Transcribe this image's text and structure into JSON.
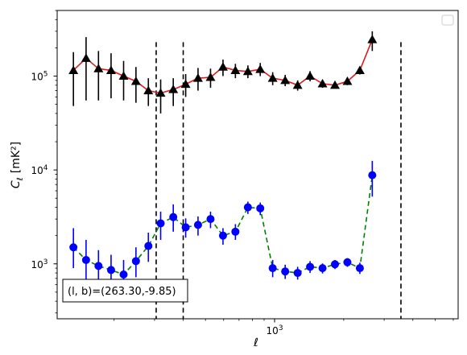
{
  "chart_data": {
    "type": "scatter",
    "title": "",
    "xlabel": "ℓ",
    "ylabel_main": "C",
    "ylabel_sub": "ℓ",
    "ylabel_unit": "[mK²]",
    "xscale": "log",
    "yscale": "log",
    "xlim": [
      113,
      6300
    ],
    "ylim": [
      260,
      500000
    ],
    "x_ticks": [
      {
        "value": 1000,
        "base": "10",
        "exp": "3"
      }
    ],
    "y_ticks": [
      {
        "value": 1000,
        "base": "10",
        "exp": "3"
      },
      {
        "value": 10000,
        "base": "10",
        "exp": "4"
      },
      {
        "value": 100000,
        "base": "10",
        "exp": "5"
      }
    ],
    "vlines": [
      305,
      400,
      3550
    ],
    "legend_placement": "top-right",
    "annotation": "(l, b)=(263.30,-9.85)",
    "series": [
      {
        "marker": "triangle",
        "color": "#000000",
        "line_color": "#e31a1c",
        "line_style": "solid",
        "points": [
          {
            "x": 133,
            "y": 115000,
            "lo": 48000,
            "hi": 180000
          },
          {
            "x": 151,
            "y": 155000,
            "lo": 55000,
            "hi": 260000
          },
          {
            "x": 171,
            "y": 120000,
            "lo": 55000,
            "hi": 185000
          },
          {
            "x": 194,
            "y": 115000,
            "lo": 58000,
            "hi": 175000
          },
          {
            "x": 220,
            "y": 100000,
            "lo": 55000,
            "hi": 145000
          },
          {
            "x": 249,
            "y": 88000,
            "lo": 52000,
            "hi": 125000
          },
          {
            "x": 282,
            "y": 70000,
            "lo": 48000,
            "hi": 95000
          },
          {
            "x": 319,
            "y": 66000,
            "lo": 40000,
            "hi": 92000
          },
          {
            "x": 362,
            "y": 72000,
            "lo": 48000,
            "hi": 95000
          },
          {
            "x": 410,
            "y": 82000,
            "lo": 60000,
            "hi": 105000
          },
          {
            "x": 464,
            "y": 95000,
            "lo": 70000,
            "hi": 122000
          },
          {
            "x": 526,
            "y": 97000,
            "lo": 75000,
            "hi": 120000
          },
          {
            "x": 596,
            "y": 125000,
            "lo": 100000,
            "hi": 150000
          },
          {
            "x": 675,
            "y": 115000,
            "lo": 95000,
            "hi": 135000
          },
          {
            "x": 765,
            "y": 112000,
            "lo": 95000,
            "hi": 130000
          },
          {
            "x": 866,
            "y": 118000,
            "lo": 100000,
            "hi": 138000
          },
          {
            "x": 981,
            "y": 95000,
            "lo": 80000,
            "hi": 110000
          },
          {
            "x": 1112,
            "y": 90000,
            "lo": 78000,
            "hi": 103000
          },
          {
            "x": 1260,
            "y": 80000,
            "lo": 70000,
            "hi": 90000
          },
          {
            "x": 1427,
            "y": 100000,
            "lo": 88000,
            "hi": 113000
          },
          {
            "x": 1617,
            "y": 83000,
            "lo": 75000,
            "hi": 91000
          },
          {
            "x": 1832,
            "y": 80000,
            "lo": 74000,
            "hi": 86000
          },
          {
            "x": 2075,
            "y": 88000,
            "lo": 80000,
            "hi": 96000
          },
          {
            "x": 2351,
            "y": 115000,
            "lo": 104000,
            "hi": 126000
          },
          {
            "x": 2663,
            "y": 245000,
            "lo": 185000,
            "hi": 300000
          }
        ]
      },
      {
        "marker": "circle",
        "color": "#0000ff",
        "line_color": "#008000",
        "line_style": "dashed",
        "points": [
          {
            "x": 133,
            "y": 1500,
            "lo": 900,
            "hi": 2400
          },
          {
            "x": 151,
            "y": 1100,
            "lo": 550,
            "hi": 1800
          },
          {
            "x": 171,
            "y": 950,
            "lo": 550,
            "hi": 1400
          },
          {
            "x": 194,
            "y": 860,
            "lo": 550,
            "hi": 1250
          },
          {
            "x": 220,
            "y": 770,
            "lo": 500,
            "hi": 1100
          },
          {
            "x": 249,
            "y": 1070,
            "lo": 720,
            "hi": 1500
          },
          {
            "x": 282,
            "y": 1550,
            "lo": 1050,
            "hi": 2150
          },
          {
            "x": 319,
            "y": 2700,
            "lo": 1800,
            "hi": 3600
          },
          {
            "x": 362,
            "y": 3150,
            "lo": 2200,
            "hi": 4300
          },
          {
            "x": 410,
            "y": 2450,
            "lo": 1900,
            "hi": 3050
          },
          {
            "x": 464,
            "y": 2600,
            "lo": 2000,
            "hi": 3200
          },
          {
            "x": 526,
            "y": 3000,
            "lo": 2400,
            "hi": 3600
          },
          {
            "x": 596,
            "y": 2000,
            "lo": 1600,
            "hi": 2400
          },
          {
            "x": 675,
            "y": 2200,
            "lo": 1800,
            "hi": 2650
          },
          {
            "x": 765,
            "y": 4000,
            "lo": 3400,
            "hi": 4600
          },
          {
            "x": 866,
            "y": 3900,
            "lo": 3300,
            "hi": 4500
          },
          {
            "x": 981,
            "y": 900,
            "lo": 720,
            "hi": 1100
          },
          {
            "x": 1112,
            "y": 830,
            "lo": 690,
            "hi": 980
          },
          {
            "x": 1260,
            "y": 800,
            "lo": 680,
            "hi": 930
          },
          {
            "x": 1427,
            "y": 930,
            "lo": 800,
            "hi": 1070
          },
          {
            "x": 1617,
            "y": 900,
            "lo": 790,
            "hi": 1010
          },
          {
            "x": 1832,
            "y": 990,
            "lo": 880,
            "hi": 1100
          },
          {
            "x": 2075,
            "y": 1040,
            "lo": 930,
            "hi": 1150
          },
          {
            "x": 2351,
            "y": 900,
            "lo": 780,
            "hi": 1030
          },
          {
            "x": 2663,
            "y": 8800,
            "lo": 5200,
            "hi": 12500
          }
        ]
      }
    ]
  }
}
